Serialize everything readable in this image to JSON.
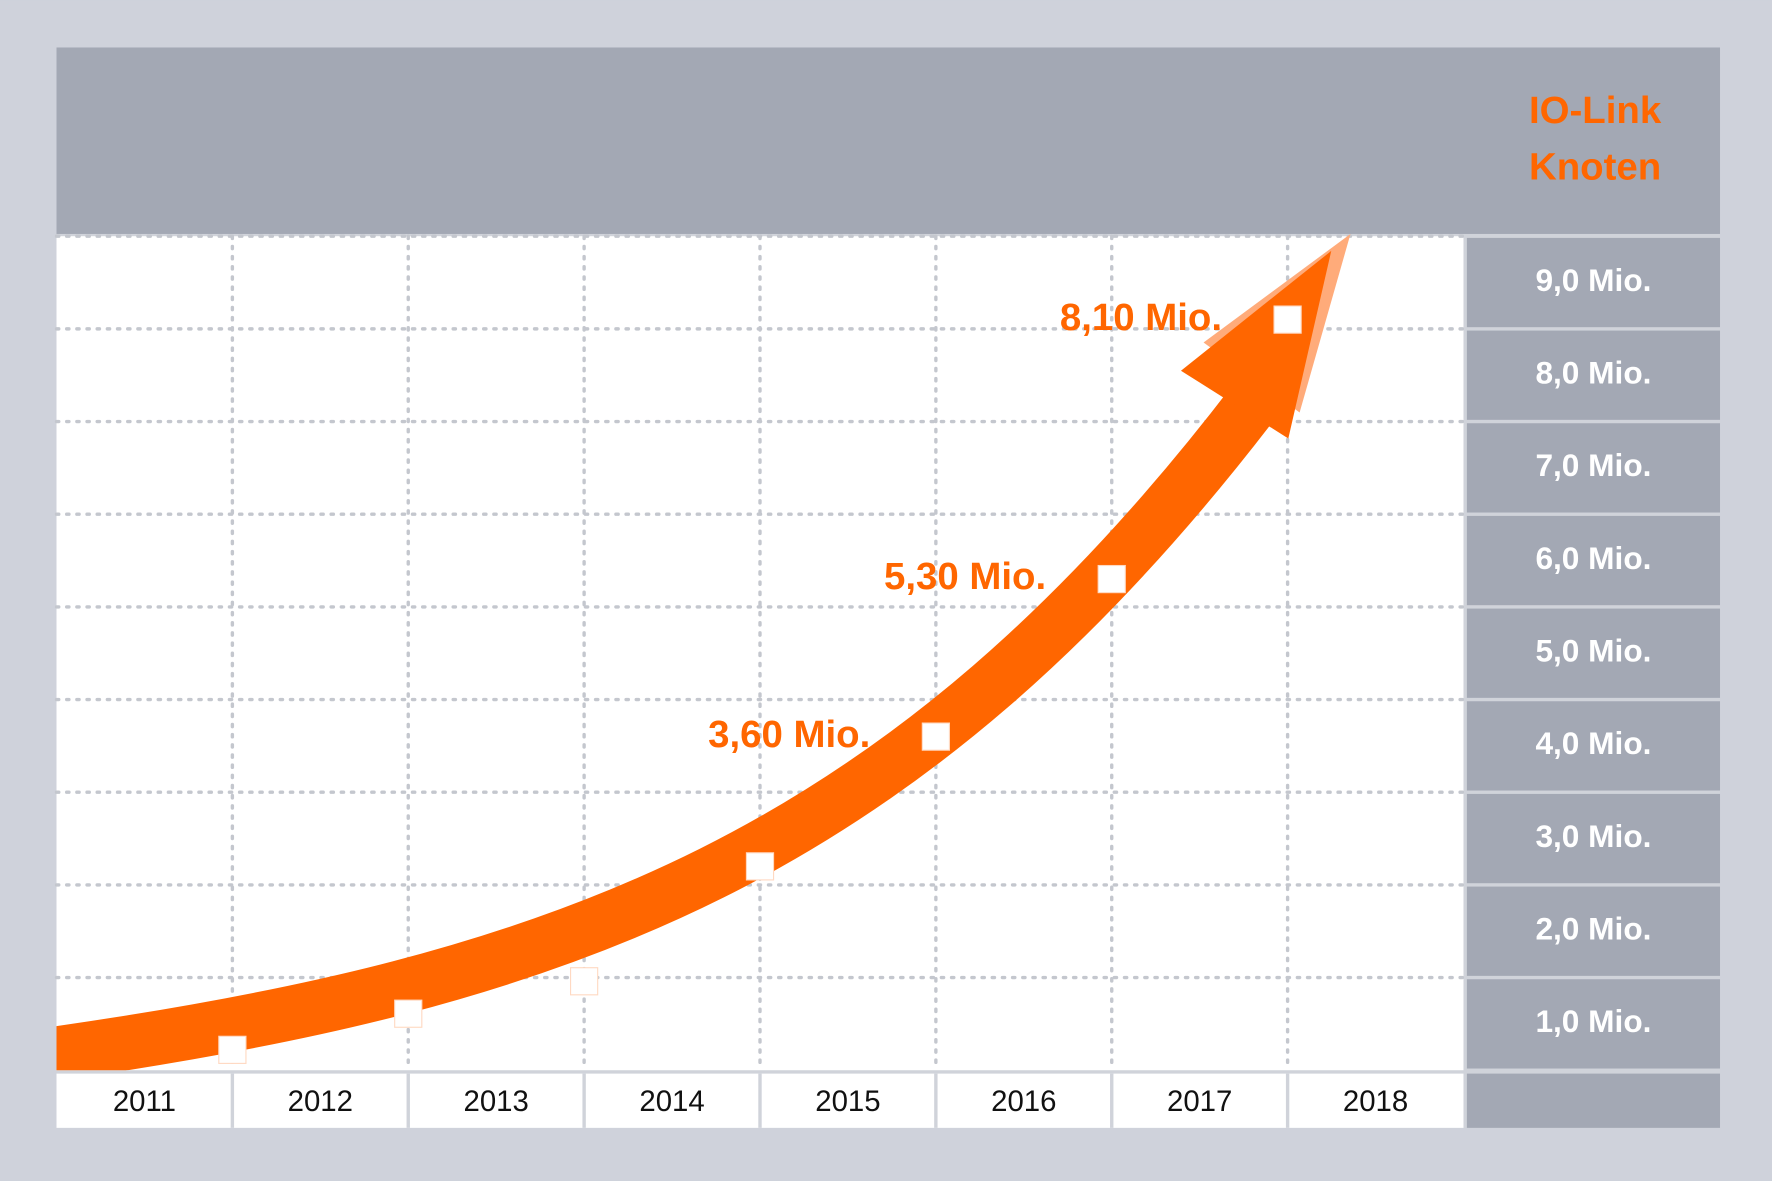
{
  "chart_data": {
    "type": "line",
    "title_lines": [
      "IO-Link",
      "Knoten"
    ],
    "categories": [
      "2011",
      "2012",
      "2013",
      "2014",
      "2015",
      "2016",
      "2017",
      "2018"
    ],
    "values": [
      0.22,
      0.61,
      0.96,
      2.2,
      3.6,
      5.3,
      8.1,
      null
    ],
    "value_labels": [
      null,
      null,
      null,
      null,
      "3,60 Mio.",
      "5,30 Mio.",
      "8,10 Mio.",
      null
    ],
    "color": "#ff6600",
    "ylim": [
      0,
      9
    ],
    "yticks": [
      {
        "value": 1,
        "label": "1,0 Mio."
      },
      {
        "value": 2,
        "label": "2,0 Mio."
      },
      {
        "value": 3,
        "label": "3,0 Mio."
      },
      {
        "value": 4,
        "label": "4,0 Mio."
      },
      {
        "value": 5,
        "label": "5,0 Mio."
      },
      {
        "value": 6,
        "label": "6,0 Mio."
      },
      {
        "value": 7,
        "label": "7,0 Mio."
      },
      {
        "value": 8,
        "label": "8,0 Mio."
      },
      {
        "value": 9,
        "label": "9,0 Mio."
      }
    ],
    "grid": true
  }
}
